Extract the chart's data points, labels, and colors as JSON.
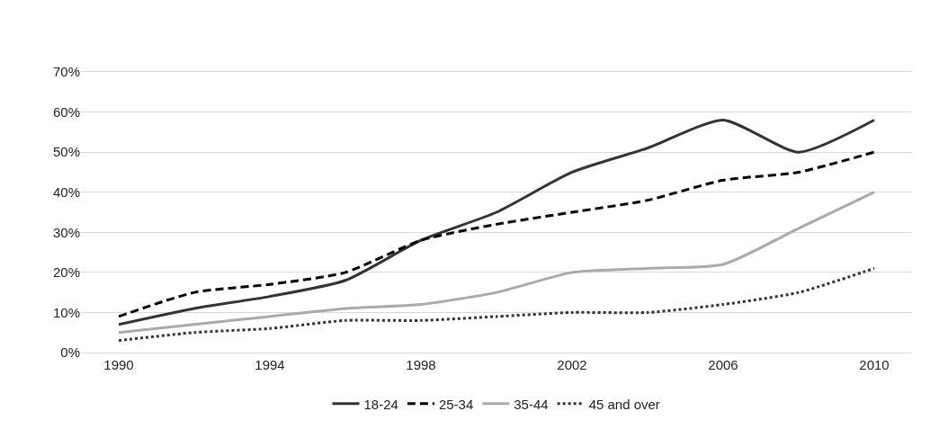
{
  "chart_data": {
    "type": "line",
    "x": [
      1990,
      1992,
      1994,
      1996,
      1998,
      2000,
      2002,
      2004,
      2006,
      2008,
      2010
    ],
    "series": [
      {
        "name": "18-24",
        "color": "#333333",
        "line_style": "solid",
        "values": [
          7,
          11,
          14,
          18,
          28,
          35,
          45,
          51,
          58,
          50,
          58
        ]
      },
      {
        "name": "25-34",
        "color": "#000000",
        "line_style": "dashed",
        "values": [
          9,
          15,
          17,
          20,
          28,
          32,
          35,
          38,
          43,
          45,
          50
        ]
      },
      {
        "name": "35-44",
        "color": "#aaaaaa",
        "line_style": "solid",
        "values": [
          5,
          7,
          9,
          11,
          12,
          15,
          20,
          21,
          22,
          31,
          40
        ]
      },
      {
        "name": "45 and over",
        "color": "#333333",
        "line_style": "dotted",
        "values": [
          3,
          5,
          6,
          8,
          8,
          9,
          10,
          10,
          12,
          15,
          21
        ]
      }
    ],
    "xlim": [
      1989,
      2011
    ],
    "xticks": [
      1990,
      1994,
      1998,
      2002,
      2006,
      2010
    ],
    "ylim": [
      0,
      70
    ],
    "yticks": [
      {
        "value": 0,
        "label": "0%"
      },
      {
        "value": 10,
        "label": "10%"
      },
      {
        "value": 20,
        "label": "20%"
      },
      {
        "value": 30,
        "label": "30%"
      },
      {
        "value": 40,
        "label": "40%"
      },
      {
        "value": 50,
        "label": "50%"
      },
      {
        "value": 60,
        "label": "60%"
      },
      {
        "value": 70,
        "label": "70%"
      }
    ],
    "grid": "y",
    "legend": "bottom",
    "marker": "none"
  }
}
